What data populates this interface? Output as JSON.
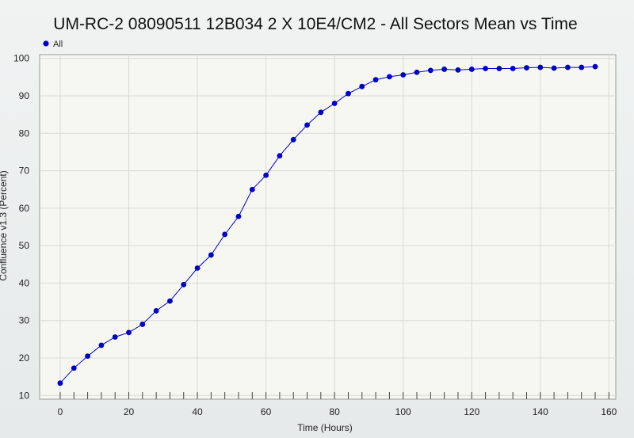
{
  "chart_data": {
    "type": "line",
    "title": "UM-RC-2 08090511 12B034 2 X 10E4/CM2 - All Sectors Mean vs Time",
    "xlabel": "Time (Hours)",
    "ylabel": "Confluence v1.3 (Percent)",
    "xlim": [
      -6,
      162
    ],
    "ylim": [
      9,
      101
    ],
    "xticks": [
      0,
      20,
      40,
      60,
      80,
      100,
      120,
      140,
      160
    ],
    "yticks": [
      10,
      20,
      30,
      40,
      50,
      60,
      70,
      80,
      90,
      100
    ],
    "minor_xtick_step": 4,
    "grid": true,
    "legend_position": "top-left",
    "series": [
      {
        "name": "All",
        "color": "#0000cc",
        "x": [
          0,
          4,
          8,
          12,
          16,
          20,
          24,
          28,
          32,
          36,
          40,
          44,
          48,
          52,
          56,
          60,
          64,
          68,
          72,
          76,
          80,
          84,
          88,
          92,
          96,
          100,
          104,
          108,
          112,
          116,
          120,
          124,
          128,
          132,
          136,
          140,
          144,
          148,
          152,
          156
        ],
        "values": [
          13.3,
          17.3,
          20.5,
          23.4,
          25.6,
          26.8,
          29.0,
          32.6,
          35.2,
          39.6,
          44.0,
          47.5,
          53.0,
          57.8,
          65.0,
          68.8,
          74.0,
          78.3,
          82.2,
          85.6,
          88.0,
          90.6,
          92.5,
          94.3,
          95.1,
          95.6,
          96.3,
          96.8,
          97.1,
          96.9,
          97.1,
          97.3,
          97.3,
          97.3,
          97.5,
          97.6,
          97.4,
          97.6,
          97.6,
          97.8
        ]
      }
    ]
  }
}
